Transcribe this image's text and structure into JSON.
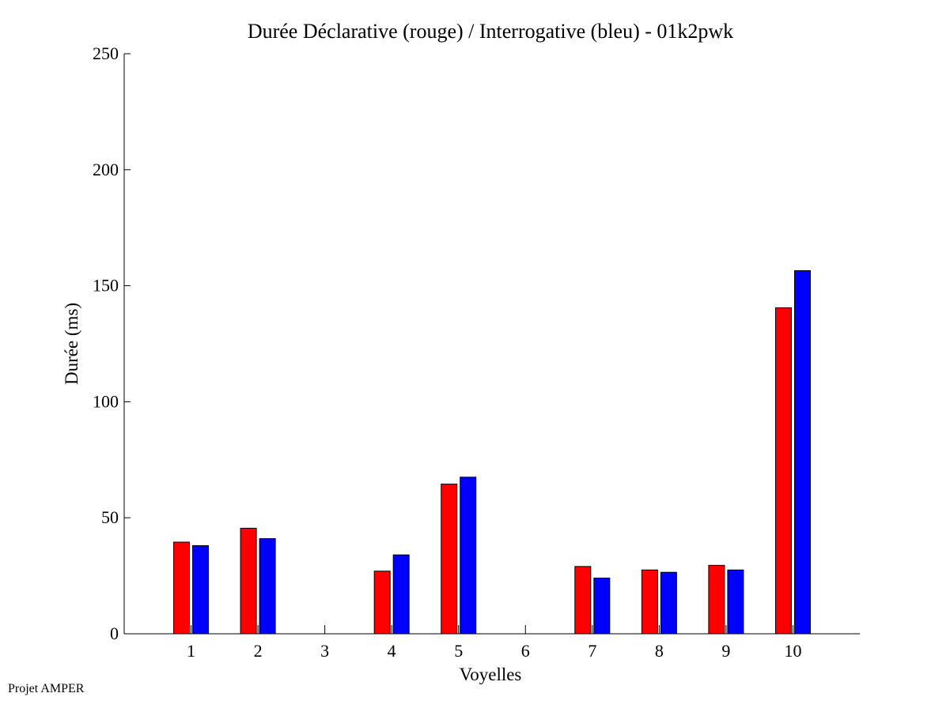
{
  "chart_data": {
    "type": "bar",
    "title": "Durée Déclarative (rouge) / Interrogative (bleu) - 01k2pwk",
    "xlabel": "Voyelles",
    "ylabel": "Durée (ms)",
    "ylim": [
      0,
      250
    ],
    "yticks": [
      0,
      50,
      100,
      150,
      200,
      250
    ],
    "xlim": [
      0,
      11
    ],
    "categories": [
      "1",
      "2",
      "3",
      "4",
      "5",
      "6",
      "7",
      "8",
      "9",
      "10"
    ],
    "series": [
      {
        "color": "#ff0000",
        "values": [
          39.5,
          45.5,
          0,
          27,
          64.5,
          0,
          29,
          27.5,
          29.5,
          140.5
        ]
      },
      {
        "color": "#0000ff",
        "values": [
          38,
          41,
          0,
          34,
          67.5,
          0,
          24,
          26.5,
          27.5,
          156.5
        ]
      }
    ],
    "grid": false
  },
  "footer": {
    "label": "Projet AMPER"
  }
}
